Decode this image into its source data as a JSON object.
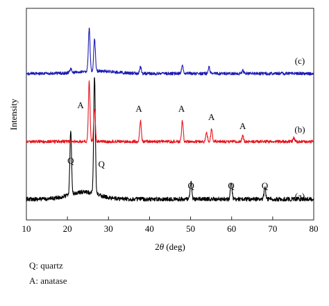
{
  "chart_data": {
    "type": "line",
    "xlabel_prefix": "2",
    "xlabel_symbol": "θ",
    "xlabel_suffix": " (deg)",
    "ylabel": "Intensity",
    "xlim": [
      10,
      80
    ],
    "x_ticks": [
      "10",
      "20",
      "30",
      "40",
      "50",
      "60",
      "70",
      "80"
    ],
    "grid": false,
    "series": [
      {
        "name": "(a)",
        "color": "#000000",
        "baseline": 0.0,
        "peaks": [
          [
            20.8,
            0.55
          ],
          [
            26.6,
            1.0
          ],
          [
            50.1,
            0.14
          ],
          [
            59.9,
            0.14
          ],
          [
            68.1,
            0.1
          ]
        ]
      },
      {
        "name": "(b)",
        "color": "#e8141c",
        "baseline": 0.0,
        "peaks": [
          [
            25.3,
            1.0
          ],
          [
            26.6,
            0.55
          ],
          [
            37.8,
            0.35
          ],
          [
            48.0,
            0.35
          ],
          [
            53.9,
            0.15
          ],
          [
            55.1,
            0.2
          ],
          [
            62.7,
            0.1
          ],
          [
            75.1,
            0.06
          ]
        ]
      },
      {
        "name": "(c)",
        "color": "#1a1ab4",
        "baseline": 0.0,
        "peaks": [
          [
            20.8,
            0.06
          ],
          [
            25.3,
            0.65
          ],
          [
            26.6,
            0.5
          ],
          [
            37.8,
            0.1
          ],
          [
            48.0,
            0.12
          ],
          [
            54.5,
            0.1
          ],
          [
            62.7,
            0.05
          ]
        ]
      }
    ],
    "annotations": [
      {
        "text": "Q",
        "x": 20.8,
        "series": "(a)"
      },
      {
        "text": "Q",
        "x": 28.3,
        "series": "(a)"
      },
      {
        "text": "Q",
        "x": 50.1,
        "series": "(a)"
      },
      {
        "text": "Q",
        "x": 59.9,
        "series": "(a)"
      },
      {
        "text": "Q",
        "x": 68.1,
        "series": "(a)"
      },
      {
        "text": "A",
        "x": 23.2,
        "series": "(b)"
      },
      {
        "text": "A",
        "x": 37.4,
        "series": "(b)"
      },
      {
        "text": "A",
        "x": 47.8,
        "series": "(b)"
      },
      {
        "text": "A",
        "x": 55.1,
        "series": "(b)"
      },
      {
        "text": "A",
        "x": 62.7,
        "series": "(b)"
      }
    ]
  },
  "notes": [
    {
      "text": "Q: quartz"
    },
    {
      "text": "A: anatase"
    }
  ]
}
